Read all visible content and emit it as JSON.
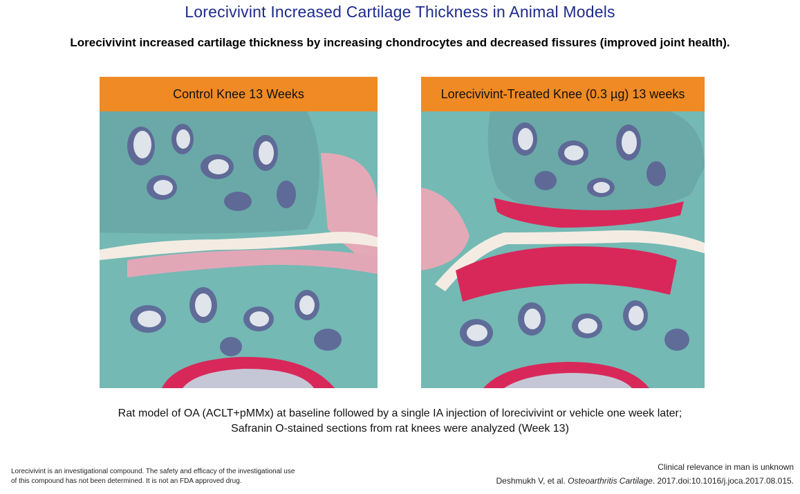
{
  "title": "Lorecivivint Increased Cartilage Thickness in Animal Models",
  "subtitle": "Lorecivivint increased cartilage thickness by increasing chondrocytes and decreased fissures (improved joint health).",
  "panels": [
    {
      "header": "Control Knee 13 Weeks"
    },
    {
      "header": "Lorecivivint-Treated Knee (0.3 µg) 13 weeks"
    }
  ],
  "caption": {
    "line1": "Rat model of OA (ACLT+pMMx) at baseline followed by a single IA injection of lorecivivint or vehicle one week later;",
    "line2": "Safranin O-stained sections from rat knees were analyzed (Week 13)"
  },
  "disclaimer": "Lorecivivint is an investigational compound. The safety and efficacy of the investigational use of this compound has not been determined. It is not an FDA approved drug.",
  "relevance": "Clinical relevance in man is unknown",
  "reference": {
    "authors": "Deshmukh V, et al.",
    "journal": "Osteoarthritis Cartilage",
    "citation": ". 2017.doi:10.1016/j.joca.2017.08.015."
  },
  "colors": {
    "title": "#1d2a8c",
    "header_bg": "#f08a24",
    "stain_teal": "#6fb5b2",
    "stain_red": "#d8285a",
    "stain_purple": "#4b4f88"
  }
}
